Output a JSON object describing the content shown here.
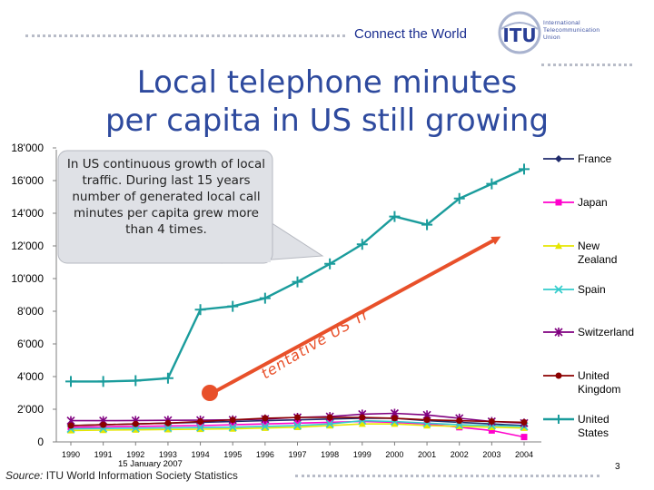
{
  "header": {
    "tagline": "Connect the World",
    "logo_text": [
      "International",
      "Telecommunication",
      "Union"
    ],
    "logo_mark": "ITU"
  },
  "slide": {
    "title_line1": "Local telephone minutes",
    "title_line2": "per capita in US still growing"
  },
  "callout": {
    "text": "In US continuous growth of local traffic. During last 15 years number of generated local call minutes per capita grew more than 4 times."
  },
  "trend_label": "tentative US Trend",
  "footer": {
    "date": "15 January 2007",
    "source_label": "Source:",
    "source_text": "ITU World Information Society Statistics",
    "page_number": "3"
  },
  "colors": {
    "title": "#2e4a9e",
    "trend": "#e8502a",
    "callout_fill": "#dfe1e6"
  },
  "chart_data": {
    "type": "line",
    "x": [
      1990,
      1991,
      1992,
      1993,
      1994,
      1995,
      1996,
      1997,
      1998,
      1999,
      2000,
      2001,
      2002,
      2003,
      2004
    ],
    "x_tick_labels": [
      "1990",
      "1991",
      "1992",
      "1993",
      "1994",
      "1995",
      "1996",
      "1997",
      "1998",
      "1999",
      "2000",
      "2001",
      "2002",
      "2003",
      "2004"
    ],
    "y_tick_labels": [
      "0",
      "2'000",
      "4'000",
      "6'000",
      "8'000",
      "10'000",
      "12'000",
      "14'000",
      "16'000",
      "18'000"
    ],
    "ylim": [
      0,
      18000
    ],
    "grid": false,
    "legend_position": "right",
    "series": [
      {
        "name": "France",
        "color": "#1f2a6b",
        "marker": "diamond",
        "values": [
          1000,
          1050,
          1100,
          1150,
          1200,
          1250,
          1300,
          1350,
          1400,
          1450,
          1450,
          1300,
          1200,
          1100,
          1000
        ]
      },
      {
        "name": "Japan",
        "color": "#ff00cc",
        "marker": "square",
        "values": [
          900,
          920,
          950,
          980,
          1000,
          1050,
          1100,
          1150,
          1200,
          1250,
          1200,
          1100,
          900,
          700,
          300
        ]
      },
      {
        "name": "New Zealand",
        "color": "#e6e600",
        "marker": "triangle",
        "values": [
          700,
          720,
          740,
          760,
          780,
          800,
          850,
          900,
          1000,
          1100,
          1100,
          1000,
          950,
          900,
          850
        ]
      },
      {
        "name": "Spain",
        "color": "#33cccc",
        "marker": "x",
        "values": [
          800,
          820,
          840,
          860,
          880,
          900,
          950,
          1000,
          1100,
          1300,
          1250,
          1150,
          1050,
          1000,
          950
        ]
      },
      {
        "name": "Switzerland",
        "color": "#800080",
        "marker": "star",
        "values": [
          1300,
          1300,
          1310,
          1320,
          1330,
          1350,
          1400,
          1500,
          1550,
          1700,
          1750,
          1650,
          1450,
          1250,
          1150
        ]
      },
      {
        "name": "United Kingdom",
        "color": "#8b0000",
        "marker": "circle",
        "values": [
          1000,
          1050,
          1100,
          1150,
          1250,
          1350,
          1450,
          1500,
          1500,
          1500,
          1450,
          1350,
          1300,
          1250,
          1200
        ]
      },
      {
        "name": "United States",
        "color": "#1a9c9c",
        "marker": "plus",
        "values": [
          3700,
          3700,
          3750,
          3900,
          8100,
          8300,
          8800,
          9800,
          10900,
          12100,
          13800,
          13300,
          14900,
          15800,
          16700
        ]
      }
    ]
  }
}
